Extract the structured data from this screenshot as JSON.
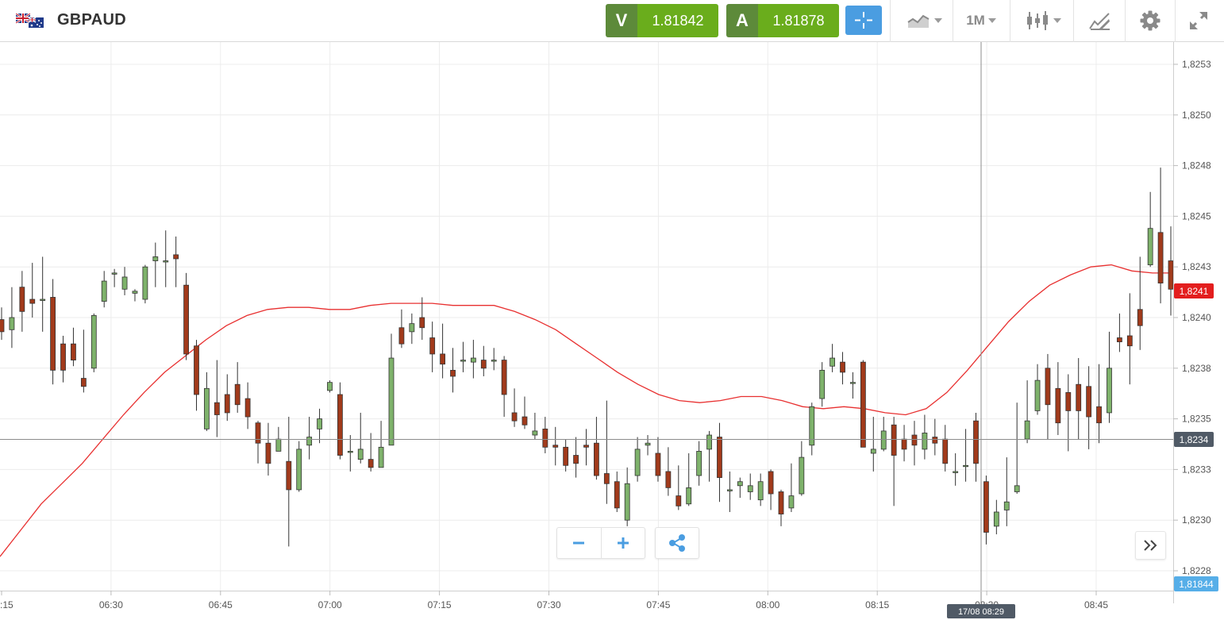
{
  "instrument": {
    "symbol": "GBPAUD",
    "flag_icon": "uk-australia-flag-icon"
  },
  "quotes": {
    "sell": {
      "label": "V",
      "value": "1.81842"
    },
    "buy": {
      "label": "A",
      "value": "1.81878"
    }
  },
  "toolbar": {
    "crosshair_icon": "crosshair-icon",
    "chart_type_icon": "area-chart-icon",
    "timeframe": "1M",
    "candle_icon": "candlestick-icon",
    "drawing_icon": "drawing-tools-icon",
    "settings_icon": "gear-icon",
    "fullscreen_icon": "expand-icon"
  },
  "colors": {
    "bull": "#7eb26b",
    "bear": "#a13a1b",
    "ma": "#e83030",
    "price_badge": "#e31e1e",
    "cursor_badge": "#505a66",
    "ask_badge": "#56aee8"
  },
  "chart_data": {
    "type": "candlestick",
    "y_ticks": [
      "1,8253",
      "1,8250",
      "1,8248",
      "1,8245",
      "1,8243",
      "1,8240",
      "1,8238",
      "1,8235",
      "1,8233",
      "1,8230",
      "1,8228"
    ],
    "x_ticks": [
      ":15",
      "06:30",
      "06:45",
      "07:00",
      "07:15",
      "07:30",
      "07:45",
      "08:00",
      "08:15",
      "08:30",
      "08:45"
    ],
    "ylim": [
      1.82275,
      1.82535
    ],
    "current_price_label": "1,8241",
    "crosshair_price_label": "1,8234",
    "ask_price_label": "1,81844",
    "crosshair_time_label": "17/08 08:29",
    "moving_average": [
      1.82287,
      1.823,
      1.82313,
      1.82323,
      1.82333,
      1.82345,
      1.82357,
      1.82368,
      1.82378,
      1.82386,
      1.82394,
      1.82401,
      1.82406,
      1.82409,
      1.8241,
      1.8241,
      1.82409,
      1.82409,
      1.82411,
      1.82412,
      1.82412,
      1.82412,
      1.82411,
      1.82411,
      1.82411,
      1.82408,
      1.82404,
      1.82399,
      1.82392,
      1.82385,
      1.82378,
      1.82372,
      1.82367,
      1.82364,
      1.82363,
      1.82364,
      1.82366,
      1.82366,
      1.82364,
      1.82361,
      1.8236,
      1.82361,
      1.8236,
      1.82358,
      1.82357,
      1.8236,
      1.82368,
      1.82379,
      1.82391,
      1.82403,
      1.82413,
      1.82421,
      1.82426,
      1.8243,
      1.82431,
      1.82428,
      1.82427,
      1.82427
    ],
    "candles": [
      [
        1.82404,
        1.82398,
        1.8241,
        1.82394
      ],
      [
        1.82399,
        1.82405,
        1.8242,
        1.8239
      ],
      [
        1.8242,
        1.82408,
        1.82428,
        1.82398
      ],
      [
        1.82414,
        1.82412,
        1.82432,
        1.82405
      ],
      [
        1.82414,
        1.82414,
        1.82435,
        1.82398
      ],
      [
        1.82415,
        1.82379,
        1.82424,
        1.82372
      ],
      [
        1.82392,
        1.82379,
        1.82396,
        1.82373
      ],
      [
        1.82392,
        1.82384,
        1.824,
        1.82381
      ],
      [
        1.82375,
        1.82371,
        1.82399,
        1.82368
      ],
      [
        1.8238,
        1.82406,
        1.82407,
        1.82378
      ],
      [
        1.82413,
        1.82423,
        1.82428,
        1.8241
      ],
      [
        1.82427,
        1.82427,
        1.82429,
        1.8242
      ],
      [
        1.82419,
        1.82425,
        1.8243,
        1.82416
      ],
      [
        1.82417,
        1.82418,
        1.82419,
        1.82413
      ],
      [
        1.82414,
        1.8243,
        1.82431,
        1.82412
      ],
      [
        1.82433,
        1.82435,
        1.82442,
        1.8242
      ],
      [
        1.82433,
        1.82433,
        1.82448,
        1.8242
      ],
      [
        1.82436,
        1.82434,
        1.82445,
        1.8242
      ],
      [
        1.82421,
        1.82387,
        1.82427,
        1.82384
      ],
      [
        1.82391,
        1.82367,
        1.82394,
        1.82359
      ],
      [
        1.8235,
        1.8237,
        1.82378,
        1.82349
      ],
      [
        1.82363,
        1.82357,
        1.82384,
        1.82346
      ],
      [
        1.82367,
        1.82358,
        1.82377,
        1.82354
      ],
      [
        1.82372,
        1.82362,
        1.82383,
        1.82358
      ],
      [
        1.82365,
        1.82356,
        1.82373,
        1.8235
      ],
      [
        1.82353,
        1.82343,
        1.82354,
        1.82333
      ],
      [
        1.82343,
        1.82333,
        1.82353,
        1.82327
      ],
      [
        1.82339,
        1.82345,
        1.82351,
        1.82339
      ],
      [
        1.82334,
        1.8232,
        1.82356,
        1.82292
      ],
      [
        1.8232,
        1.8234,
        1.82344,
        1.82319
      ],
      [
        1.82342,
        1.82346,
        1.82356,
        1.82335
      ],
      [
        1.8235,
        1.82355,
        1.8236,
        1.82343
      ],
      [
        1.82369,
        1.82373,
        1.82374,
        1.82368
      ],
      [
        1.82367,
        1.82337,
        1.82373,
        1.82335
      ],
      [
        1.82339,
        1.82339,
        1.82347,
        1.82329
      ],
      [
        1.82335,
        1.8234,
        1.82358,
        1.82333
      ],
      [
        1.82335,
        1.82331,
        1.82348,
        1.82329
      ],
      [
        1.82331,
        1.82341,
        1.82354,
        1.82332
      ],
      [
        1.82342,
        1.82385,
        1.82397,
        1.8237
      ],
      [
        1.824,
        1.82392,
        1.82409,
        1.8239
      ],
      [
        1.82398,
        1.82402,
        1.82407,
        1.82392
      ],
      [
        1.82405,
        1.824,
        1.82415,
        1.82394
      ],
      [
        1.82395,
        1.82387,
        1.82403,
        1.82378
      ],
      [
        1.82387,
        1.82382,
        1.82402,
        1.82375
      ],
      [
        1.82379,
        1.82376,
        1.8239,
        1.82368
      ],
      [
        1.82384,
        1.82384,
        1.82393,
        1.82378
      ],
      [
        1.82383,
        1.82385,
        1.82394,
        1.82375
      ],
      [
        1.82384,
        1.8238,
        1.82391,
        1.82376
      ],
      [
        1.82384,
        1.82384,
        1.8239,
        1.82379
      ],
      [
        1.82384,
        1.82367,
        1.82386,
        1.82356
      ],
      [
        1.82358,
        1.82354,
        1.8237,
        1.82351
      ],
      [
        1.82356,
        1.82352,
        1.82366,
        1.8235
      ],
      [
        1.82347,
        1.82349,
        1.82358,
        1.82345
      ],
      [
        1.8235,
        1.82341,
        1.82356,
        1.82338
      ],
      [
        1.82342,
        1.82341,
        1.82351,
        1.82332
      ],
      [
        1.82341,
        1.82332,
        1.82345,
        1.82329
      ],
      [
        1.82337,
        1.82333,
        1.82346,
        1.82326
      ],
      [
        1.82342,
        1.82341,
        1.8235,
        1.82332
      ],
      [
        1.82343,
        1.82327,
        1.82356,
        1.82325
      ],
      [
        1.82328,
        1.82323,
        1.82364,
        1.82313
      ],
      [
        1.82324,
        1.82311,
        1.82329,
        1.82309
      ],
      [
        1.82305,
        1.82323,
        1.82331,
        1.82302
      ],
      [
        1.82327,
        1.8234,
        1.82346,
        1.82324
      ],
      [
        1.82342,
        1.82343,
        1.82347,
        1.82337
      ],
      [
        1.82338,
        1.82327,
        1.82346,
        1.82324
      ],
      [
        1.82329,
        1.82321,
        1.82341,
        1.82317
      ],
      [
        1.82317,
        1.82312,
        1.82332,
        1.8231
      ],
      [
        1.82313,
        1.82321,
        1.82338,
        1.82312
      ],
      [
        1.82327,
        1.82339,
        1.82344,
        1.82322
      ],
      [
        1.8234,
        1.82347,
        1.82349,
        1.82324
      ],
      [
        1.82346,
        1.82326,
        1.82353,
        1.82314
      ],
      [
        1.8232,
        1.8232,
        1.82329,
        1.82309
      ],
      [
        1.82322,
        1.82324,
        1.82326,
        1.82316
      ],
      [
        1.82319,
        1.82322,
        1.82328,
        1.82315
      ],
      [
        1.82315,
        1.82324,
        1.82328,
        1.82312
      ],
      [
        1.82329,
        1.82318,
        1.8233,
        1.8231
      ],
      [
        1.82319,
        1.82308,
        1.8232,
        1.82302
      ],
      [
        1.82311,
        1.82317,
        1.82333,
        1.82309
      ],
      [
        1.82318,
        1.82336,
        1.82344,
        1.82317
      ],
      [
        1.82342,
        1.82361,
        1.82363,
        1.82337
      ],
      [
        1.82365,
        1.82379,
        1.82383,
        1.82361
      ],
      [
        1.82381,
        1.82385,
        1.82392,
        1.82378
      ],
      [
        1.82383,
        1.82378,
        1.82388,
        1.82372
      ],
      [
        1.82373,
        1.82373,
        1.82378,
        1.82365
      ],
      [
        1.82383,
        1.82341,
        1.82384,
        1.82341
      ],
      [
        1.82338,
        1.8234,
        1.82356,
        1.82329
      ],
      [
        1.8234,
        1.82349,
        1.82356,
        1.82339
      ],
      [
        1.82352,
        1.82337,
        1.82356,
        1.82312
      ],
      [
        1.82345,
        1.8234,
        1.82352,
        1.82334
      ],
      [
        1.82347,
        1.82342,
        1.82354,
        1.82332
      ],
      [
        1.8234,
        1.82348,
        1.82357,
        1.82335
      ],
      [
        1.82346,
        1.82343,
        1.82355,
        1.82337
      ],
      [
        1.82345,
        1.82333,
        1.82352,
        1.82329
      ],
      [
        1.82329,
        1.82329,
        1.82338,
        1.82322
      ],
      [
        1.82332,
        1.82332,
        1.8235,
        1.82324
      ],
      [
        1.82354,
        1.82333,
        1.82358,
        1.82324
      ],
      [
        1.82324,
        1.82299,
        1.82327,
        1.82293
      ],
      [
        1.82302,
        1.82309,
        1.82315,
        1.82298
      ],
      [
        1.8231,
        1.82314,
        1.82336,
        1.82302
      ],
      [
        1.82319,
        1.82322,
        1.82363,
        1.82318
      ],
      [
        1.82345,
        1.82354,
        1.82374,
        1.82343
      ],
      [
        1.82359,
        1.82374,
        1.82382,
        1.82357
      ],
      [
        1.8238,
        1.82362,
        1.82387,
        1.82345
      ],
      [
        1.8237,
        1.82353,
        1.82383,
        1.82347
      ],
      [
        1.82368,
        1.82359,
        1.82377,
        1.82339
      ],
      [
        1.82372,
        1.82359,
        1.82385,
        1.82345
      ],
      [
        1.82371,
        1.82356,
        1.82381,
        1.8234
      ],
      [
        1.82361,
        1.82353,
        1.82382,
        1.82343
      ],
      [
        1.82358,
        1.8238,
        1.82398,
        1.82353
      ],
      [
        1.82395,
        1.82393,
        1.82407,
        1.82388
      ],
      [
        1.82396,
        1.82391,
        1.82417,
        1.82372
      ],
      [
        1.82409,
        1.82401,
        1.82435,
        1.82389
      ],
      [
        1.82431,
        1.82449,
        1.82467,
        1.8243
      ],
      [
        1.82447,
        1.82422,
        1.82479,
        1.82412
      ],
      [
        1.82433,
        1.82419,
        1.8245,
        1.82406
      ]
    ]
  }
}
